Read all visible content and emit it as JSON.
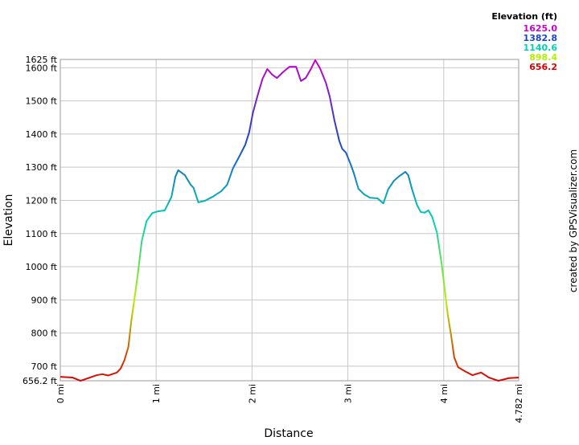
{
  "chart_data": {
    "type": "line",
    "x_label": "Distance",
    "y_label": "Elevation",
    "credit": "created by GPSVisualizer.com",
    "legend_title": "Elevation (ft)",
    "legend_position": "top-right",
    "color_scale": [
      {
        "value": 1625.0,
        "label": "1625.0",
        "color": "#cc00cc"
      },
      {
        "value": 1382.8,
        "label": "1382.8",
        "color": "#1e46c8"
      },
      {
        "value": 1140.6,
        "label": "1140.6",
        "color": "#00d2b4"
      },
      {
        "value": 898.4,
        "label": "898.4",
        "color": "#b4f000"
      },
      {
        "value": 656.2,
        "label": "656.2",
        "color": "#dc0000"
      }
    ],
    "grid": true,
    "xlim": [
      0,
      4.782
    ],
    "ylim": [
      656.2,
      1625
    ],
    "xticks": [
      {
        "value": 0,
        "label": "0 mi"
      },
      {
        "value": 1,
        "label": "1 mi"
      },
      {
        "value": 2,
        "label": "2 mi"
      },
      {
        "value": 3,
        "label": "3 mi"
      },
      {
        "value": 4,
        "label": "4 mi"
      },
      {
        "value": 4.782,
        "label": "4.782 mi"
      }
    ],
    "yticks": [
      {
        "value": 656.2,
        "label": "656.2 ft"
      },
      {
        "value": 700,
        "label": "700 ft"
      },
      {
        "value": 800,
        "label": "800 ft"
      },
      {
        "value": 900,
        "label": "900 ft"
      },
      {
        "value": 1000,
        "label": "1000 ft"
      },
      {
        "value": 1100,
        "label": "1100 ft"
      },
      {
        "value": 1200,
        "label": "1200 ft"
      },
      {
        "value": 1300,
        "label": "1300 ft"
      },
      {
        "value": 1400,
        "label": "1400 ft"
      },
      {
        "value": 1500,
        "label": "1500 ft"
      },
      {
        "value": 1600,
        "label": "1600 ft"
      },
      {
        "value": 1625,
        "label": "1625 ft"
      }
    ],
    "x": [
      0,
      0.126,
      0.21,
      0.29,
      0.38,
      0.44,
      0.5,
      0.59,
      0.63,
      0.67,
      0.71,
      0.74,
      0.77,
      0.81,
      0.85,
      0.9,
      0.96,
      1.02,
      1.09,
      1.16,
      1.2,
      1.23,
      1.3,
      1.36,
      1.39,
      1.44,
      1.51,
      1.59,
      1.68,
      1.74,
      1.77,
      1.8,
      1.87,
      1.93,
      1.97,
      2.01,
      2.06,
      2.11,
      2.16,
      2.21,
      2.26,
      2.32,
      2.39,
      2.46,
      2.51,
      2.56,
      2.61,
      2.66,
      2.71,
      2.77,
      2.81,
      2.86,
      2.91,
      2.94,
      2.98,
      3.03,
      3.06,
      3.11,
      3.17,
      3.23,
      3.31,
      3.37,
      3.42,
      3.48,
      3.54,
      3.6,
      3.63,
      3.67,
      3.72,
      3.76,
      3.8,
      3.84,
      3.88,
      3.93,
      3.98,
      4.01,
      4.04,
      4.08,
      4.11,
      4.15,
      4.22,
      4.3,
      4.39,
      4.47,
      4.57,
      4.68,
      4.782
    ],
    "values": [
      668,
      666,
      656,
      664,
      673,
      676,
      672,
      681,
      693,
      719,
      758,
      835,
      896,
      981,
      1078,
      1138,
      1162,
      1167,
      1170,
      1211,
      1271,
      1291,
      1276,
      1247,
      1238,
      1194,
      1199,
      1211,
      1228,
      1247,
      1271,
      1296,
      1334,
      1368,
      1405,
      1465,
      1518,
      1567,
      1596,
      1579,
      1569,
      1586,
      1603,
      1603,
      1560,
      1569,
      1594,
      1623,
      1598,
      1555,
      1514,
      1441,
      1380,
      1356,
      1344,
      1308,
      1284,
      1235,
      1218,
      1208,
      1206,
      1191,
      1233,
      1259,
      1274,
      1286,
      1276,
      1233,
      1187,
      1165,
      1163,
      1170,
      1150,
      1102,
      1005,
      932,
      860,
      787,
      726,
      697,
      685,
      673,
      681,
      666,
      656,
      664,
      666
    ]
  }
}
